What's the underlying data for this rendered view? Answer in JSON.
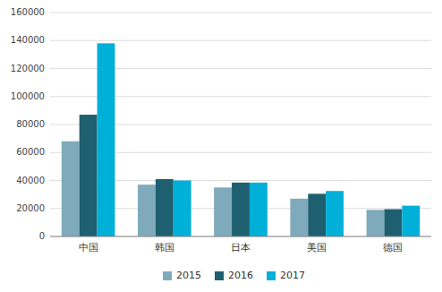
{
  "chart_data": {
    "type": "bar",
    "categories": [
      "中国",
      "韩国",
      "日本",
      "美国",
      "德国"
    ],
    "series": [
      {
        "name": "2015",
        "color": "#7faabc",
        "values": [
          68000,
          37000,
          35000,
          27000,
          19000
        ]
      },
      {
        "name": "2016",
        "color": "#1e6070",
        "values": [
          87000,
          41000,
          38500,
          30500,
          19500
        ]
      },
      {
        "name": "2017",
        "color": "#00b0d8",
        "values": [
          138000,
          40000,
          38500,
          32500,
          22000
        ]
      }
    ],
    "ylim": [
      0,
      160000
    ],
    "yticks": [
      0,
      20000,
      40000,
      60000,
      80000,
      100000,
      120000,
      140000,
      160000
    ],
    "grid": true,
    "legend": "bottom"
  }
}
